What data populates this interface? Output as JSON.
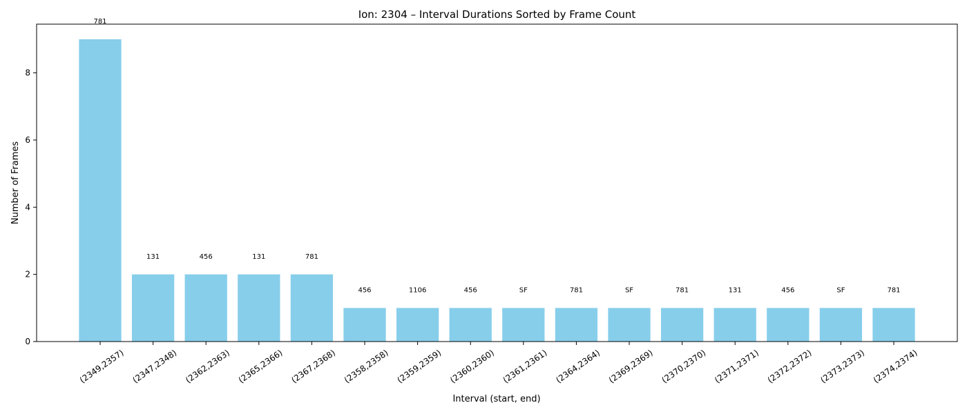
{
  "chart_data": {
    "type": "bar",
    "title": "Ion: 2304 – Interval Durations Sorted by Frame Count",
    "xlabel": "Interval (start, end)",
    "ylabel": "Number of Frames",
    "categories": [
      "(2349,2357)",
      "(2347,2348)",
      "(2362,2363)",
      "(2365,2366)",
      "(2367,2368)",
      "(2358,2358)",
      "(2359,2359)",
      "(2360,2360)",
      "(2361,2361)",
      "(2364,2364)",
      "(2369,2369)",
      "(2370,2370)",
      "(2371,2371)",
      "(2372,2372)",
      "(2373,2373)",
      "(2374,2374)"
    ],
    "values": [
      9,
      2,
      2,
      2,
      2,
      1,
      1,
      1,
      1,
      1,
      1,
      1,
      1,
      1,
      1,
      1
    ],
    "bar_labels": [
      "781",
      "131",
      "456",
      "131",
      "781",
      "456",
      "1106",
      "456",
      "SF",
      "781",
      "SF",
      "781",
      "131",
      "456",
      "SF",
      "781"
    ],
    "ylim": [
      0,
      9.45
    ],
    "yticks": [
      0,
      2,
      4,
      6,
      8
    ],
    "bar_color": "#87ceeb",
    "grid": false,
    "legend": "none"
  }
}
